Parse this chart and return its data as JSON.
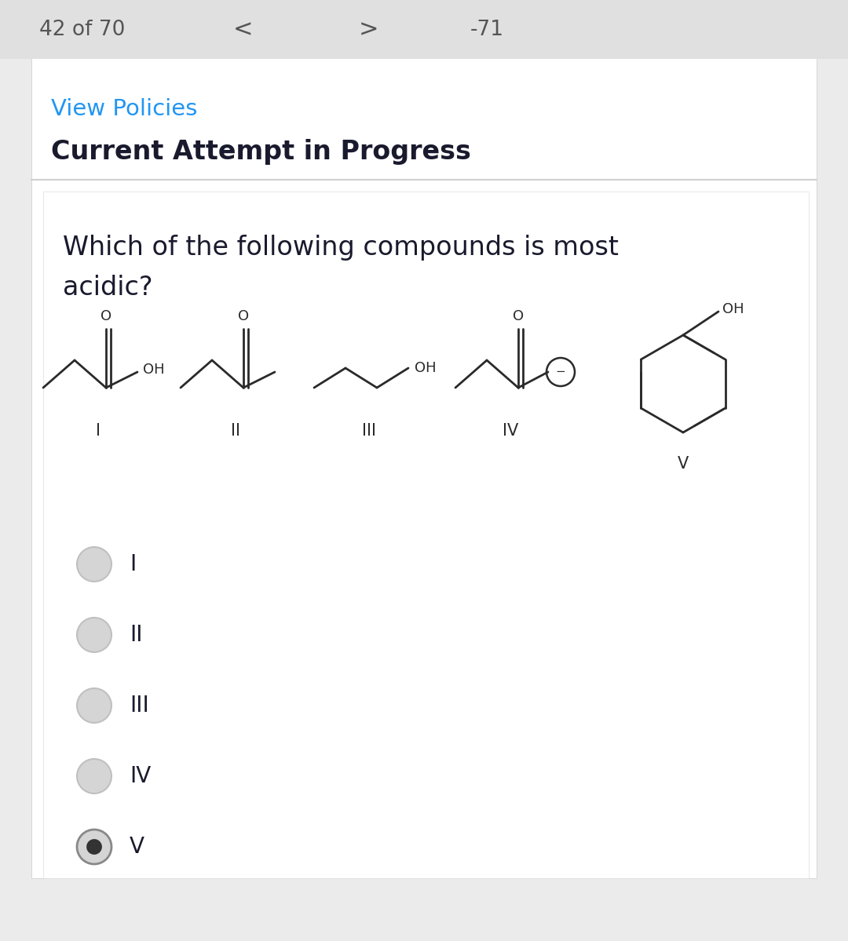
{
  "bg_top": "#ebebeb",
  "bg_white": "#ffffff",
  "nav_text": "42 of 70",
  "nav_color": "#555555",
  "view_policies_text": "View Policies",
  "view_policies_color": "#2196F3",
  "current_attempt_text": "Current Attempt in Progress",
  "question_text": "Which of the following compounds is most\nacidic?",
  "labels": [
    "I",
    "II",
    "III",
    "IV",
    "V"
  ],
  "radio_options": [
    "I",
    "II",
    "III",
    "IV",
    "V"
  ],
  "selected_option": 4,
  "radio_unselected_face": "#d8d8d8",
  "radio_unselected_edge": "#c0c0c0",
  "radio_selected_face": "#d8d8d8",
  "radio_selected_edge": "#888888",
  "radio_dot_color": "#333333",
  "line_color": "#d0d0d0",
  "text_color": "#1a1a2e",
  "bond_color": "#2a2a2a",
  "bond_lw": 2.0
}
